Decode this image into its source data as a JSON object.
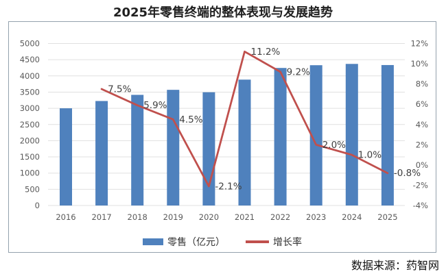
{
  "title": "2025年零售终端的整体表现与发展趋势",
  "source": "数据来源：药智网",
  "legend": [
    {
      "label": "零售（亿元）",
      "type": "bar",
      "color": "#4f81bd"
    },
    {
      "label": "增长率",
      "type": "line",
      "color": "#c0504d"
    }
  ],
  "chart_data": {
    "type": "bar+line",
    "title": "2025年零售终端的整体表现与发展趋势",
    "categories": [
      "2016",
      "2017",
      "2018",
      "2019",
      "2020",
      "2021",
      "2022",
      "2023",
      "2024",
      "2025"
    ],
    "series": [
      {
        "name": "零售（亿元）",
        "type": "bar",
        "axis": "left",
        "color": "#4f81bd",
        "values": [
          3000,
          3225,
          3415,
          3570,
          3495,
          3885,
          4245,
          4330,
          4370,
          4335
        ]
      },
      {
        "name": "增长率",
        "type": "line",
        "axis": "right",
        "color": "#c0504d",
        "values": [
          null,
          7.5,
          5.9,
          4.5,
          -2.1,
          11.2,
          9.2,
          2.0,
          1.0,
          -0.8
        ],
        "labels": [
          null,
          "7.5%",
          "5.9%",
          "4.5%",
          "-2.1%",
          "11.2%",
          "9.2%",
          "2.0%",
          "1.0%",
          "-0.8%"
        ]
      }
    ],
    "left_axis": {
      "min": 0,
      "max": 5000,
      "step": 500
    },
    "right_axis": {
      "min": -4,
      "max": 12,
      "step": 2,
      "format": "percent"
    },
    "grid": true,
    "legend_position": "bottom",
    "colors": {
      "grid": "#e0e0e0",
      "tick_text": "#595959",
      "data_label": "#3f3f3f",
      "border": "#93a1ad"
    }
  }
}
